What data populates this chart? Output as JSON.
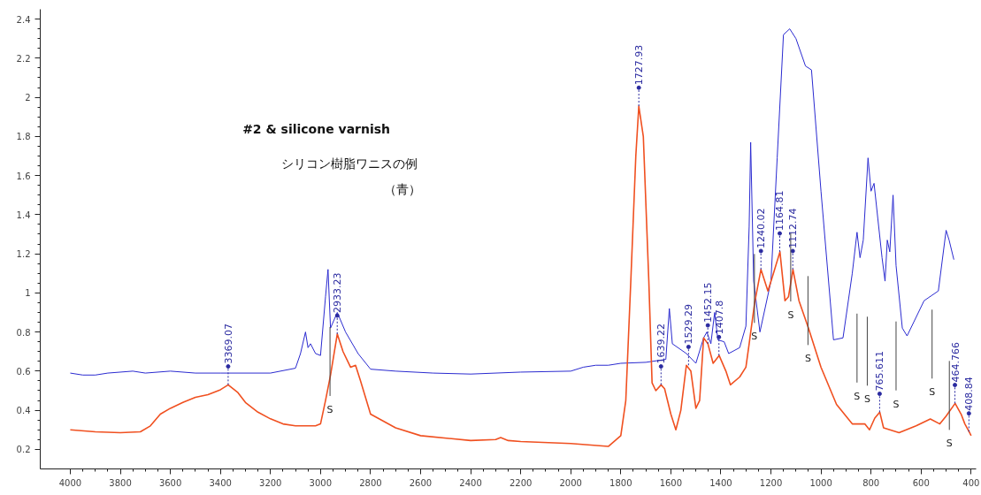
{
  "chart_data": {
    "type": "line",
    "series": [
      {
        "color": "#2a2ad0",
        "x": [
          4000,
          3950,
          3900,
          3850,
          3750,
          3700,
          3600,
          3500,
          3400,
          3200,
          3100,
          3080,
          3060,
          3050,
          3040,
          3020,
          3000,
          2980,
          2970,
          2960,
          2933,
          2900,
          2850,
          2800,
          2700,
          2550,
          2400,
          2200,
          2000,
          1950,
          1900,
          1850,
          1800,
          1700,
          1620,
          1606,
          1594,
          1538,
          1500,
          1469,
          1456,
          1440,
          1425,
          1412,
          1387,
          1369,
          1325,
          1300,
          1287,
          1281,
          1269,
          1244,
          1200,
          1175,
          1150,
          1125,
          1100,
          1062,
          1038,
          1000,
          950,
          912,
          875,
          856,
          844,
          831,
          812,
          800,
          788,
          756,
          744,
          735,
          725,
          712,
          700,
          675,
          656,
          588,
          531,
          500,
          488,
          469
        ],
        "values": [
          0.59,
          0.58,
          0.58,
          0.59,
          0.6,
          0.59,
          0.6,
          0.59,
          0.59,
          0.59,
          0.615,
          0.69,
          0.8,
          0.72,
          0.74,
          0.69,
          0.68,
          0.98,
          1.12,
          0.82,
          0.9,
          0.8,
          0.69,
          0.61,
          0.6,
          0.59,
          0.585,
          0.595,
          0.6,
          0.62,
          0.63,
          0.63,
          0.64,
          0.645,
          0.66,
          0.92,
          0.74,
          0.69,
          0.64,
          0.77,
          0.8,
          0.74,
          0.9,
          0.76,
          0.75,
          0.69,
          0.72,
          0.83,
          1.34,
          1.77,
          1.06,
          0.8,
          1.06,
          1.69,
          2.32,
          2.35,
          2.3,
          2.16,
          2.14,
          1.52,
          0.76,
          0.77,
          1.1,
          1.31,
          1.18,
          1.27,
          1.69,
          1.52,
          1.56,
          1.18,
          1.06,
          1.27,
          1.21,
          1.5,
          1.14,
          0.82,
          0.78,
          0.96,
          1.01,
          1.32,
          1.27,
          1.17
        ]
      },
      {
        "color": "#f05020",
        "x": [
          4000,
          3900,
          3800,
          3720,
          3680,
          3640,
          3600,
          3550,
          3500,
          3450,
          3400,
          3369,
          3330,
          3300,
          3250,
          3200,
          3150,
          3100,
          3020,
          3000,
          2980,
          2960,
          2933,
          2910,
          2880,
          2860,
          2840,
          2800,
          2700,
          2600,
          2400,
          2300,
          2280,
          2250,
          2200,
          2000,
          1850,
          1800,
          1780,
          1760,
          1740,
          1728,
          1710,
          1688,
          1675,
          1660,
          1639,
          1625,
          1600,
          1580,
          1560,
          1538,
          1520,
          1500,
          1485,
          1469,
          1452,
          1431,
          1407,
          1380,
          1362,
          1325,
          1300,
          1287,
          1265,
          1240,
          1212,
          1190,
          1164,
          1144,
          1130,
          1112,
          1088,
          1050,
          1000,
          938,
          875,
          825,
          806,
          785,
          765,
          750,
          688,
          620,
          563,
          525,
          500,
          464,
          440,
          425,
          408,
          400
        ],
        "values": [
          0.3,
          0.29,
          0.285,
          0.29,
          0.32,
          0.38,
          0.41,
          0.44,
          0.466,
          0.48,
          0.505,
          0.53,
          0.49,
          0.44,
          0.39,
          0.356,
          0.33,
          0.32,
          0.32,
          0.33,
          0.45,
          0.58,
          0.79,
          0.7,
          0.62,
          0.63,
          0.55,
          0.38,
          0.31,
          0.27,
          0.245,
          0.25,
          0.26,
          0.245,
          0.24,
          0.23,
          0.215,
          0.27,
          0.45,
          1.06,
          1.7,
          1.955,
          1.8,
          1.06,
          0.54,
          0.5,
          0.53,
          0.51,
          0.38,
          0.3,
          0.4,
          0.63,
          0.6,
          0.41,
          0.45,
          0.77,
          0.74,
          0.64,
          0.68,
          0.6,
          0.53,
          0.57,
          0.62,
          0.74,
          0.95,
          1.12,
          1.01,
          1.1,
          1.21,
          0.96,
          0.98,
          1.12,
          0.96,
          0.82,
          0.62,
          0.43,
          0.33,
          0.33,
          0.3,
          0.36,
          0.39,
          0.31,
          0.285,
          0.32,
          0.355,
          0.33,
          0.37,
          0.435,
          0.38,
          0.33,
          0.29,
          0.27
        ]
      }
    ],
    "xlim": [
      4120,
      380
    ],
    "ylim": [
      0.1,
      2.45
    ],
    "xticks": [
      4000,
      3800,
      3600,
      3400,
      3200,
      3000,
      2800,
      2600,
      2400,
      2200,
      2000,
      1800,
      1600,
      1400,
      1200,
      1000,
      800,
      600,
      400
    ],
    "yticks": [
      0.2,
      0.4,
      0.6,
      0.8,
      1,
      1.2,
      1.4,
      1.6,
      1.8,
      2,
      2.2,
      2.4
    ],
    "grid": false,
    "marker": "none",
    "line_style": "solid",
    "ref_lines": [
      {
        "axis": "x",
        "value": 2962,
        "label": "S"
      },
      {
        "axis": "x",
        "value": 1266,
        "label": "S"
      },
      {
        "axis": "x",
        "value": 1121,
        "label": "S"
      },
      {
        "axis": "x",
        "value": 1052,
        "label": "S"
      },
      {
        "axis": "x",
        "value": 856,
        "label": "S"
      },
      {
        "axis": "x",
        "value": 815,
        "label": "S"
      },
      {
        "axis": "x",
        "value": 700,
        "label": "S"
      },
      {
        "axis": "x",
        "value": 556,
        "label": "S"
      },
      {
        "axis": "x",
        "value": 487,
        "label": "S"
      }
    ],
    "annotations": [
      "#2 & silicone varnish",
      "シリコン樹脂ワニスの例",
      "（青）",
      {
        "text": "3369.07",
        "x": 3369.07,
        "y": 0.53
      },
      {
        "text": "2933.23",
        "x": 2933.23,
        "y": 0.79
      },
      {
        "text": "1727.93",
        "x": 1727.93,
        "y": 1.955
      },
      {
        "text": "1639.22",
        "x": 1639.22,
        "y": 0.53
      },
      {
        "text": "1529.29",
        "x": 1529.29,
        "y": 0.63
      },
      {
        "text": "1452.15",
        "x": 1452.15,
        "y": 0.74
      },
      {
        "text": "1407.8",
        "x": 1407.8,
        "y": 0.68
      },
      {
        "text": "1240.02",
        "x": 1240.02,
        "y": 1.12
      },
      {
        "text": "1164.81",
        "x": 1164.81,
        "y": 1.21
      },
      {
        "text": "1112.74",
        "x": 1112.74,
        "y": 1.12
      },
      {
        "text": "765.611",
        "x": 765.611,
        "y": 0.39
      },
      {
        "text": "464.766",
        "x": 464.766,
        "y": 0.435
      },
      {
        "text": "408.84",
        "x": 408.84,
        "y": 0.29
      }
    ]
  }
}
